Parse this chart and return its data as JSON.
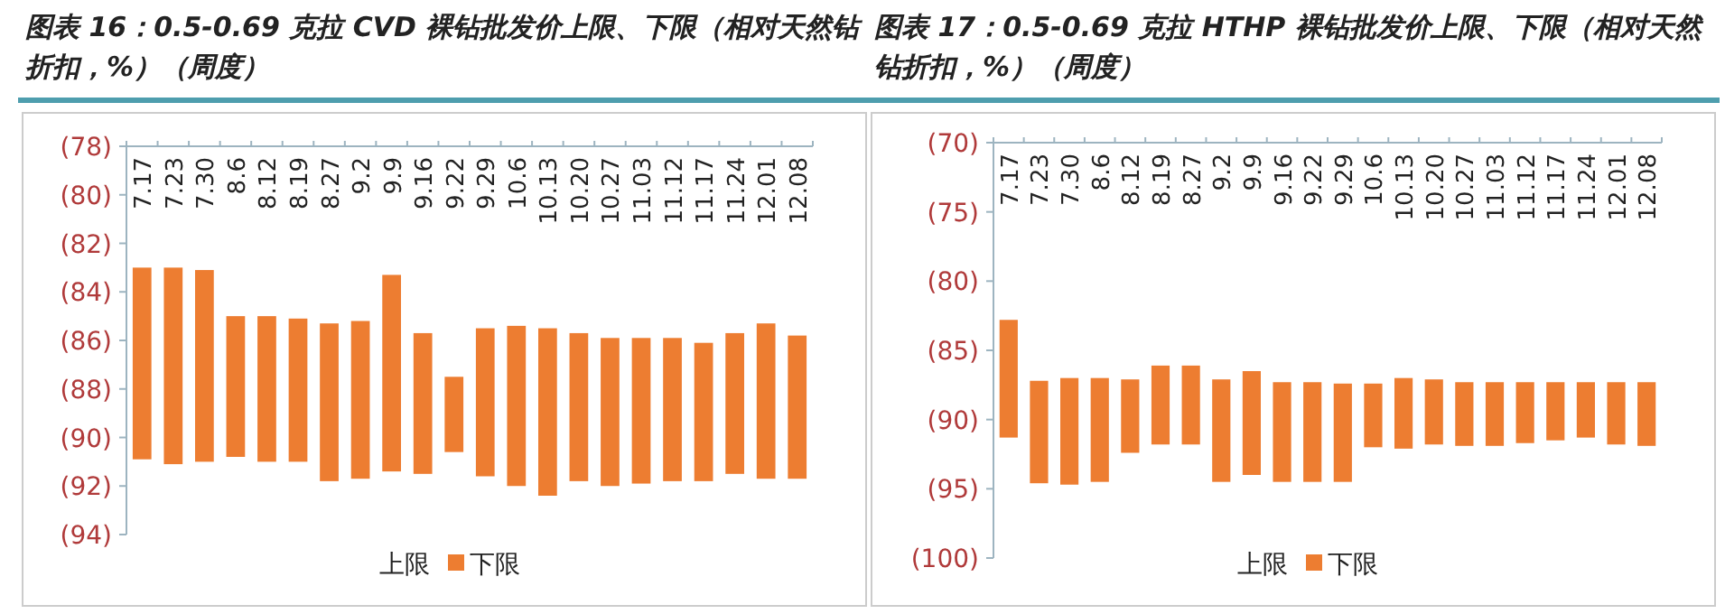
{
  "chart_data": [
    {
      "type": "bar",
      "title": "图表 16：0.5-0.69 克拉 CVD 裸钻批发价上限、下限（相对天然钻折扣，%）（周度）",
      "categories": [
        "7.17",
        "7.23",
        "7.30",
        "8.6",
        "8.12",
        "8.19",
        "8.27",
        "9.2",
        "9.9",
        "9.16",
        "9.22",
        "9.29",
        "10.6",
        "10.13",
        "10.20",
        "10.27",
        "11.03",
        "11.12",
        "11.17",
        "11.24",
        "12.01",
        "12.08"
      ],
      "series": [
        {
          "name": "下限",
          "color": "#ed7d31",
          "base": [
            -83.0,
            -83.0,
            -83.1,
            -85.0,
            -85.0,
            -85.1,
            -85.3,
            -85.2,
            -83.3,
            -85.7,
            -87.5,
            -85.5,
            -85.4,
            -85.5,
            -85.7,
            -85.9,
            -85.9,
            -85.9,
            -86.1,
            -85.7,
            -85.3,
            -85.8
          ],
          "values": [
            -7.9,
            -8.1,
            -7.9,
            -5.8,
            -6.0,
            -5.9,
            -6.5,
            -6.5,
            -8.1,
            -5.8,
            -3.1,
            -6.1,
            -6.6,
            -6.9,
            -6.1,
            -6.1,
            -6.0,
            -5.9,
            -5.7,
            -5.8,
            -6.4,
            -5.9
          ]
        }
      ],
      "ylim": [
        -94,
        -78
      ],
      "yticks": [
        {
          "value": -94,
          "label": "(94)"
        },
        {
          "value": -92,
          "label": "(92)"
        },
        {
          "value": -90,
          "label": "(90)"
        },
        {
          "value": -88,
          "label": "(88)"
        },
        {
          "value": -86,
          "label": "(86)"
        },
        {
          "value": -84,
          "label": "(84)"
        },
        {
          "value": -82,
          "label": "(82)"
        },
        {
          "value": -80,
          "label": "(80)"
        },
        {
          "value": -78,
          "label": "(78)"
        }
      ],
      "legend": "bottom",
      "annotations": [
        "上限"
      ]
    },
    {
      "type": "bar",
      "title": "图表 17：0.5-0.69 克拉 HTHP 裸钻批发价上限、下限（相对天然钻折扣，%）（周度）",
      "categories": [
        "7.17",
        "7.23",
        "7.30",
        "8.6",
        "8.12",
        "8.19",
        "8.27",
        "9.2",
        "9.9",
        "9.16",
        "9.22",
        "9.29",
        "10.6",
        "10.13",
        "10.20",
        "10.27",
        "11.03",
        "11.12",
        "11.17",
        "11.24",
        "12.01",
        "12.08"
      ],
      "series": [
        {
          "name": "下限",
          "color": "#ed7d31",
          "base": [
            -82.8,
            -87.2,
            -87.0,
            -87.0,
            -87.1,
            -86.1,
            -86.1,
            -87.1,
            -86.5,
            -87.3,
            -87.3,
            -87.4,
            -87.4,
            -87.0,
            -87.1,
            -87.3,
            -87.3,
            -87.3,
            -87.3,
            -87.3,
            -87.3,
            -87.3
          ],
          "values": [
            -8.5,
            -7.4,
            -7.7,
            -7.5,
            -5.3,
            -5.7,
            -5.7,
            -7.4,
            -7.5,
            -7.2,
            -7.2,
            -7.1,
            -4.6,
            -5.1,
            -4.7,
            -4.6,
            -4.6,
            -4.4,
            -4.2,
            -4.0,
            -4.5,
            -4.6
          ]
        }
      ],
      "ylim": [
        -100,
        -70
      ],
      "yticks": [
        {
          "value": -100,
          "label": "(100)"
        },
        {
          "value": -95,
          "label": "(95)"
        },
        {
          "value": -90,
          "label": "(90)"
        },
        {
          "value": -85,
          "label": "(85)"
        },
        {
          "value": -80,
          "label": "(80)"
        },
        {
          "value": -75,
          "label": "(75)"
        },
        {
          "value": -70,
          "label": "(70)"
        }
      ],
      "legend": "bottom",
      "annotations": [
        "上限"
      ]
    }
  ]
}
